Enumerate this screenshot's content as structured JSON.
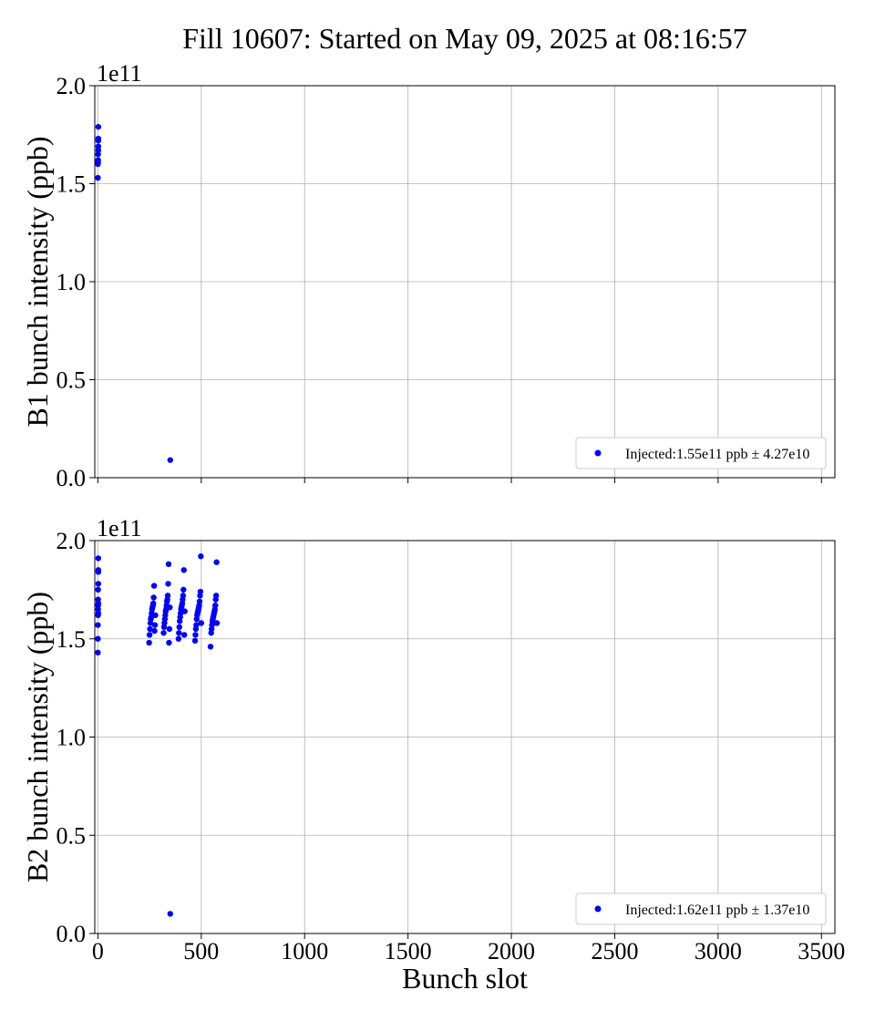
{
  "chart_data": {
    "type": "scatter",
    "title": "Fill 10607: Started on May 09, 2025 at 08:16:57",
    "xlabel": "Bunch slot",
    "xlim": [
      -15,
      3565
    ],
    "xticks": [
      0,
      500,
      1000,
      1500,
      2000,
      2500,
      3000,
      3500
    ],
    "xtick_labels": [
      "0",
      "500",
      "1000",
      "1500",
      "2000",
      "2500",
      "3000",
      "3500"
    ],
    "grid": true,
    "marker_color": "#0000ff",
    "panels": [
      {
        "ylabel": "B1 bunch intensity (ppb)",
        "ylim": [
          0,
          200000000000.0
        ],
        "yticks": [
          0,
          50000000000.0,
          100000000000.0,
          150000000000.0,
          200000000000.0
        ],
        "ytick_labels": [
          "0.0",
          "0.5",
          "1.0",
          "1.5",
          "2.0"
        ],
        "offset_text": "1e11",
        "legend_loc": "lower right",
        "legend": "Injected:1.55e11 ppb ± 4.27e10",
        "x": [
          0,
          0,
          1,
          1,
          1,
          2,
          2,
          2,
          2,
          2,
          350
        ],
        "y": [
          153000000000.0,
          160000000000.0,
          161000000000.0,
          162000000000.0,
          165000000000.0,
          167000000000.0,
          169000000000.0,
          172000000000.0,
          173000000000.0,
          179000000000.0,
          9000000000.0
        ]
      },
      {
        "ylabel": "B2 bunch intensity (ppb)",
        "ylim": [
          0,
          200000000000.0
        ],
        "yticks": [
          0,
          50000000000.0,
          100000000000.0,
          150000000000.0,
          200000000000.0
        ],
        "ytick_labels": [
          "0.0",
          "0.5",
          "1.0",
          "1.5",
          "2.0"
        ],
        "offset_text": "1e11",
        "legend_loc": "lower right",
        "legend": "Injected:1.62e11 ppb ± 1.37e10",
        "x": [
          0,
          0,
          0,
          1,
          1,
          1,
          1,
          1,
          2,
          2,
          2,
          2,
          2,
          2,
          350,
          248,
          250,
          252,
          254,
          256,
          258,
          260,
          262,
          264,
          266,
          268,
          270,
          272,
          274,
          276,
          278,
          318,
          320,
          322,
          324,
          326,
          328,
          330,
          332,
          334,
          336,
          338,
          340,
          342,
          344,
          346,
          348,
          390,
          392,
          394,
          396,
          398,
          400,
          402,
          404,
          406,
          408,
          410,
          412,
          414,
          416,
          418,
          420,
          470,
          472,
          474,
          476,
          478,
          480,
          482,
          484,
          486,
          488,
          490,
          492,
          494,
          496,
          498,
          500,
          545,
          548,
          550,
          552,
          554,
          556,
          558,
          560,
          562,
          564,
          566,
          568,
          570,
          572,
          574,
          576
        ],
        "y": [
          143000000000.0,
          150000000000.0,
          157000000000.0,
          162000000000.0,
          165000000000.0,
          167000000000.0,
          170000000000.0,
          175000000000.0,
          178000000000.0,
          184000000000.0,
          185000000000.0,
          191000000000.0,
          163000000000.0,
          168000000000.0,
          10000000000.0,
          148000000000.0,
          152000000000.0,
          155000000000.0,
          158000000000.0,
          160000000000.0,
          161000000000.0,
          163000000000.0,
          165000000000.0,
          166000000000.0,
          167000000000.0,
          168000000000.0,
          171000000000.0,
          177000000000.0,
          154000000000.0,
          157000000000.0,
          162000000000.0,
          153000000000.0,
          156000000000.0,
          158000000000.0,
          160000000000.0,
          162000000000.0,
          164000000000.0,
          165000000000.0,
          167000000000.0,
          169000000000.0,
          170000000000.0,
          172000000000.0,
          178000000000.0,
          188000000000.0,
          148000000000.0,
          155000000000.0,
          166000000000.0,
          150000000000.0,
          153000000000.0,
          156000000000.0,
          159000000000.0,
          161000000000.0,
          163000000000.0,
          165000000000.0,
          166000000000.0,
          167000000000.0,
          168000000000.0,
          170000000000.0,
          172000000000.0,
          175000000000.0,
          185000000000.0,
          152000000000.0,
          164000000000.0,
          149000000000.0,
          152000000000.0,
          155000000000.0,
          157000000000.0,
          160000000000.0,
          162000000000.0,
          163000000000.0,
          164000000000.0,
          165000000000.0,
          166000000000.0,
          167000000000.0,
          169000000000.0,
          172000000000.0,
          174000000000.0,
          192000000000.0,
          158000000000.0,
          146000000000.0,
          153000000000.0,
          155000000000.0,
          157000000000.0,
          159000000000.0,
          160000000000.0,
          161000000000.0,
          162000000000.0,
          163000000000.0,
          164000000000.0,
          165000000000.0,
          167000000000.0,
          170000000000.0,
          172000000000.0,
          189000000000.0,
          158000000000.0
        ]
      }
    ]
  }
}
